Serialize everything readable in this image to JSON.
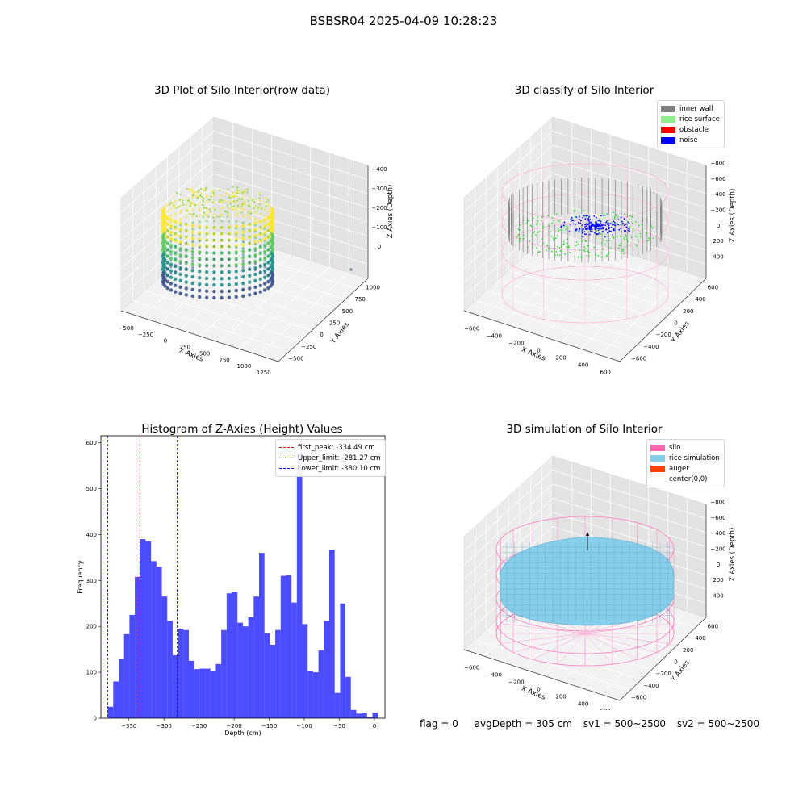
{
  "suptitle": "BSBSR04 2025-04-09 10:28:23",
  "footer": {
    "flag": "flag = 0",
    "avg_depth": "avgDepth = 305 cm",
    "sv1": "sv1 = 500~2500",
    "sv2": "sv2 = 500~2500"
  },
  "panel_raw": {
    "title": "3D Plot of Silo Interior(row data)",
    "xlabel": "X Axies",
    "ylabel": "Y Axies",
    "zlabel": "Z Axies (Depth)",
    "x_ticks": [
      "−500",
      "−250",
      "0",
      "250",
      "500",
      "750",
      "1000",
      "1250"
    ],
    "y_ticks": [
      "−500",
      "−250",
      "0",
      "250",
      "500",
      "750",
      "1000"
    ],
    "z_ticks": [
      "0",
      "−100",
      "−200",
      "−300",
      "−400"
    ],
    "colormap": [
      "#fde725",
      "#5ec962",
      "#21918c",
      "#3b528b"
    ]
  },
  "panel_classify": {
    "title": "3D classify of Silo Interior",
    "xlabel": "X Axies",
    "ylabel": "Y Axies",
    "zlabel": "Z Axies (Depth)",
    "x_ticks": [
      "−600",
      "−400",
      "−200",
      "0",
      "200",
      "400",
      "600"
    ],
    "y_ticks": [
      "−600",
      "−400",
      "−200",
      "0",
      "200",
      "400",
      "600"
    ],
    "z_ticks": [
      "400",
      "200",
      "0",
      "−200",
      "−400",
      "−600",
      "−800"
    ],
    "legend": [
      {
        "label": "inner wall",
        "color": "#808080"
      },
      {
        "label": "rice surface",
        "color": "#90ee90"
      },
      {
        "label": "obstacle",
        "color": "#ff0000"
      },
      {
        "label": "noise",
        "color": "#0000ff"
      }
    ]
  },
  "panel_sim": {
    "title": "3D simulation of Silo Interior",
    "xlabel": "X Axies",
    "ylabel": "Y Axies",
    "zlabel": "Z Axies (Depth)",
    "x_ticks": [
      "−600",
      "−400",
      "−200",
      "0",
      "200",
      "400",
      "600"
    ],
    "y_ticks": [
      "−600",
      "−400",
      "−200",
      "0",
      "200",
      "400",
      "600"
    ],
    "z_ticks": [
      "400",
      "200",
      "0",
      "−200",
      "−400",
      "−600",
      "−800"
    ],
    "legend": [
      {
        "label": "silo",
        "color": "#ff69b4"
      },
      {
        "label": "rice simulation",
        "color": "#87ceeb"
      },
      {
        "label": "auger",
        "color": "#ff4500"
      },
      {
        "label": "center(0,0)",
        "color": ""
      }
    ]
  },
  "chart_data": {
    "type": "bar",
    "title": "Histogram of Z-Axies (Height) Values",
    "xlabel": "Depth (cm)",
    "ylabel": "Frequency",
    "xlim": [
      -390,
      15
    ],
    "ylim": [
      0,
      615
    ],
    "x_ticks": [
      -350,
      -300,
      -250,
      -200,
      -150,
      -100,
      -50,
      0
    ],
    "x_tick_labels": [
      "−350",
      "−300",
      "−250",
      "−200",
      "−150",
      "−100",
      "−50",
      "0"
    ],
    "y_ticks": [
      0,
      100,
      200,
      300,
      400,
      500,
      600
    ],
    "bar_color": "#0000ff",
    "bin_width": 7.7,
    "bin_start": -380.1,
    "values": [
      25,
      80,
      130,
      183,
      225,
      308,
      390,
      385,
      342,
      330,
      265,
      212,
      137,
      195,
      192,
      125,
      107,
      108,
      108,
      102,
      118,
      192,
      272,
      275,
      208,
      200,
      220,
      265,
      360,
      185,
      160,
      192,
      310,
      312,
      252,
      580,
      205,
      102,
      100,
      148,
      212,
      367,
      55,
      250,
      90,
      18,
      10,
      12,
      3,
      12
    ],
    "grid": false,
    "legend_position": "top-right",
    "vlines": [
      {
        "label": "first_peak: -334.49 cm",
        "x": -334.49,
        "color": "#ff0000"
      },
      {
        "label": "Upper_limit: -281.27 cm",
        "x": -281.27,
        "color": "#0000ff"
      },
      {
        "label": "Lower_limit: -380.10 cm",
        "x": -380.1,
        "color": "#0000ff"
      }
    ]
  }
}
